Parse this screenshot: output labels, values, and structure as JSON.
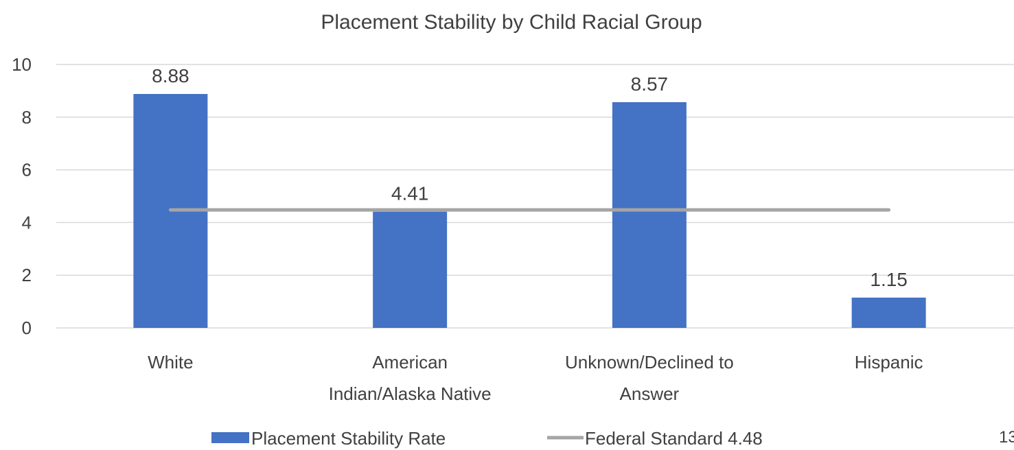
{
  "chart_data": {
    "type": "bar",
    "title": "Placement Stability by Child Racial Group",
    "xlabel": "",
    "ylabel": "",
    "categories": [
      [
        "White"
      ],
      [
        "American",
        "Indian/Alaska Native"
      ],
      [
        "Unknown/Declined to",
        "Answer"
      ],
      [
        "Hispanic"
      ]
    ],
    "series": [
      {
        "name": "Placement Stability Rate",
        "type": "bar",
        "values": [
          8.88,
          4.41,
          8.57,
          1.15
        ],
        "data_labels": [
          "8.88",
          "4.41",
          "8.57",
          "1.15"
        ],
        "color": "#4472C4"
      },
      {
        "name": "Federal Standard 4.48",
        "type": "line",
        "values": [
          4.48,
          4.48,
          4.48,
          4.48
        ],
        "color": "#A5A5A5"
      }
    ],
    "ylim": [
      0,
      10
    ],
    "yticks": [
      0,
      2,
      4,
      6,
      8,
      10
    ],
    "grid": true,
    "legend_position": "bottom"
  },
  "page_number": "13"
}
